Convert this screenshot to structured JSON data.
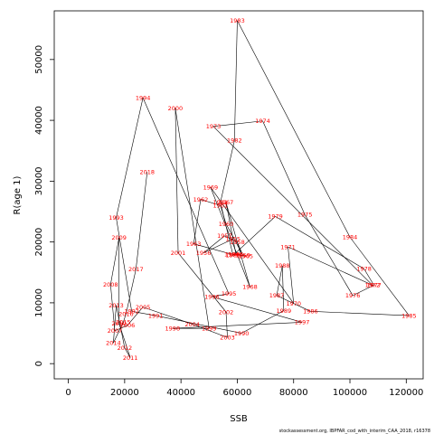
{
  "chart_data": {
    "type": "line",
    "xlabel": "SSB",
    "ylabel": "R(age 1)",
    "xlim": [
      -5000,
      126000
    ],
    "ylim": [
      -2500,
      58000
    ],
    "xticks": [
      0,
      20000,
      40000,
      60000,
      80000,
      100000,
      120000
    ],
    "yticks": [
      0,
      10000,
      20000,
      30000,
      40000,
      50000
    ],
    "xtick_labels": [
      "0",
      "20000",
      "40000",
      "60000",
      "80000",
      "100000",
      "120000"
    ],
    "ytick_labels": [
      "0",
      "10000",
      "20000",
      "30000",
      "40000",
      "50000"
    ],
    "line_color": "#000000",
    "label_color": "#ff0000",
    "grid": false,
    "source_note": "stockassessment.org, IBPFAR_cod_with_interim_CAA_2018, r16378",
    "points": [
      {
        "year": "1955",
        "x": 58500,
        "y": 20500
      },
      {
        "year": "1956",
        "x": 48000,
        "y": 18200
      },
      {
        "year": "1957",
        "x": 55500,
        "y": 21000
      },
      {
        "year": "1958",
        "x": 60000,
        "y": 20000
      },
      {
        "year": "1959",
        "x": 62000,
        "y": 17800
      },
      {
        "year": "1960",
        "x": 56000,
        "y": 23000
      },
      {
        "year": "1961",
        "x": 54000,
        "y": 26000
      },
      {
        "year": "1962",
        "x": 47000,
        "y": 27000
      },
      {
        "year": "1963",
        "x": 44500,
        "y": 19700
      },
      {
        "year": "1964",
        "x": 58000,
        "y": 18000
      },
      {
        "year": "1965",
        "x": 63000,
        "y": 17700
      },
      {
        "year": "1966",
        "x": 59500,
        "y": 18000
      },
      {
        "year": "1967",
        "x": 56000,
        "y": 26500
      },
      {
        "year": "1968",
        "x": 64500,
        "y": 12600
      },
      {
        "year": "1969",
        "x": 50500,
        "y": 29000
      },
      {
        "year": "1970",
        "x": 80000,
        "y": 9900
      },
      {
        "year": "1971",
        "x": 78000,
        "y": 19200
      },
      {
        "year": "1972",
        "x": 108000,
        "y": 12900
      },
      {
        "year": "1973",
        "x": 51500,
        "y": 39000
      },
      {
        "year": "1974",
        "x": 69000,
        "y": 39900
      },
      {
        "year": "1975",
        "x": 84000,
        "y": 24500
      },
      {
        "year": "1976",
        "x": 101000,
        "y": 11200
      },
      {
        "year": "1977",
        "x": 108500,
        "y": 12900
      },
      {
        "year": "1978",
        "x": 105000,
        "y": 15600
      },
      {
        "year": "1979",
        "x": 73500,
        "y": 24200
      },
      {
        "year": "1980",
        "x": 58500,
        "y": 17800
      },
      {
        "year": "1981",
        "x": 54000,
        "y": 26500
      },
      {
        "year": "1982",
        "x": 59000,
        "y": 36700
      },
      {
        "year": "1983",
        "x": 60000,
        "y": 56400
      },
      {
        "year": "1984",
        "x": 100000,
        "y": 20800
      },
      {
        "year": "1985",
        "x": 121000,
        "y": 7900
      },
      {
        "year": "1986",
        "x": 86000,
        "y": 8600
      },
      {
        "year": "1987",
        "x": 74000,
        "y": 11200
      },
      {
        "year": "1988",
        "x": 76000,
        "y": 16100
      },
      {
        "year": "1989",
        "x": 76500,
        "y": 8700
      },
      {
        "year": "1990",
        "x": 61500,
        "y": 5000
      },
      {
        "year": "1991",
        "x": 31000,
        "y": 7900
      },
      {
        "year": "1992",
        "x": 22500,
        "y": 8600
      },
      {
        "year": "1993",
        "x": 17000,
        "y": 24000
      },
      {
        "year": "1994",
        "x": 26500,
        "y": 43700
      },
      {
        "year": "1995",
        "x": 57000,
        "y": 11500
      },
      {
        "year": "1996",
        "x": 51000,
        "y": 11000
      },
      {
        "year": "1997",
        "x": 83000,
        "y": 6800
      },
      {
        "year": "1998",
        "x": 37000,
        "y": 5800
      },
      {
        "year": "1999",
        "x": 50000,
        "y": 5800
      },
      {
        "year": "2000",
        "x": 38000,
        "y": 42000
      },
      {
        "year": "2001",
        "x": 39000,
        "y": 18200
      },
      {
        "year": "2002",
        "x": 56000,
        "y": 8500
      },
      {
        "year": "2003",
        "x": 56500,
        "y": 4300
      },
      {
        "year": "2004",
        "x": 44000,
        "y": 6500
      },
      {
        "year": "2005",
        "x": 26500,
        "y": 9300
      },
      {
        "year": "2006",
        "x": 21000,
        "y": 6300
      },
      {
        "year": "2007",
        "x": 16500,
        "y": 5400
      },
      {
        "year": "2008",
        "x": 15000,
        "y": 13000
      },
      {
        "year": "2009",
        "x": 18000,
        "y": 20700
      },
      {
        "year": "2010",
        "x": 18000,
        "y": 6600
      },
      {
        "year": "2011",
        "x": 22000,
        "y": 1000
      },
      {
        "year": "2012",
        "x": 20000,
        "y": 2600
      },
      {
        "year": "2013",
        "x": 17000,
        "y": 9600
      },
      {
        "year": "2014",
        "x": 16000,
        "y": 3400
      },
      {
        "year": "2015",
        "x": 19500,
        "y": 6800
      },
      {
        "year": "2016",
        "x": 20500,
        "y": 8200
      },
      {
        "year": "2017",
        "x": 24000,
        "y": 15500
      },
      {
        "year": "2018",
        "x": 28000,
        "y": 31500
      }
    ]
  }
}
